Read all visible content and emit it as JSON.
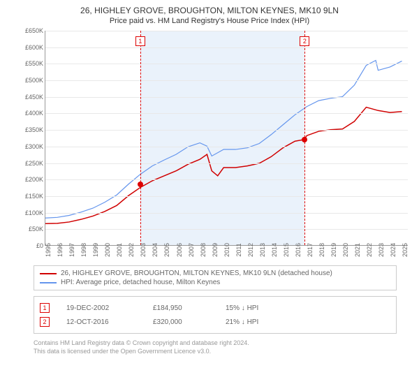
{
  "title": {
    "line1": "26, HIGHLEY GROVE, BROUGHTON, MILTON KEYNES, MK10 9LN",
    "line2": "Price paid vs. HM Land Registry's House Price Index (HPI)"
  },
  "chart": {
    "type": "line",
    "ylim": [
      0,
      650000
    ],
    "ytick_step": 50000,
    "yticks": [
      "£0",
      "£50K",
      "£100K",
      "£150K",
      "£200K",
      "£250K",
      "£300K",
      "£350K",
      "£400K",
      "£450K",
      "£500K",
      "£550K",
      "£600K",
      "£650K"
    ],
    "xlim": [
      1995,
      2025.5
    ],
    "xticks": [
      1995,
      1996,
      1997,
      1998,
      1999,
      2000,
      2001,
      2002,
      2003,
      2004,
      2005,
      2006,
      2007,
      2008,
      2009,
      2010,
      2011,
      2012,
      2013,
      2014,
      2015,
      2016,
      2017,
      2018,
      2019,
      2020,
      2021,
      2022,
      2023,
      2024,
      2025
    ],
    "background_color": "#ffffff",
    "grid_color": "#e8e8e8",
    "shade_color": "#eaf2fb",
    "shade_range": [
      2002.97,
      2016.78
    ],
    "series": [
      {
        "name": "26, HIGHLEY GROVE, BROUGHTON, MILTON KEYNES, MK10 9LN (detached house)",
        "color": "#d00000",
        "width": 1.5,
        "data": [
          [
            1995,
            65000
          ],
          [
            1996,
            66000
          ],
          [
            1997,
            70000
          ],
          [
            1998,
            78000
          ],
          [
            1999,
            88000
          ],
          [
            2000,
            102000
          ],
          [
            2001,
            120000
          ],
          [
            2002,
            150000
          ],
          [
            2003,
            175000
          ],
          [
            2004,
            195000
          ],
          [
            2005,
            210000
          ],
          [
            2006,
            225000
          ],
          [
            2007,
            245000
          ],
          [
            2008,
            260000
          ],
          [
            2008.6,
            275000
          ],
          [
            2009,
            225000
          ],
          [
            2009.5,
            210000
          ],
          [
            2010,
            235000
          ],
          [
            2011,
            235000
          ],
          [
            2012,
            240000
          ],
          [
            2013,
            248000
          ],
          [
            2014,
            268000
          ],
          [
            2015,
            295000
          ],
          [
            2016,
            315000
          ],
          [
            2016.78,
            320000
          ],
          [
            2017,
            332000
          ],
          [
            2018,
            345000
          ],
          [
            2019,
            350000
          ],
          [
            2020,
            352000
          ],
          [
            2021,
            375000
          ],
          [
            2022,
            418000
          ],
          [
            2023,
            408000
          ],
          [
            2024,
            402000
          ],
          [
            2025,
            405000
          ]
        ]
      },
      {
        "name": "HPI: Average price, detached house, Milton Keynes",
        "color": "#6495ed",
        "width": 1.2,
        "data": [
          [
            1995,
            82000
          ],
          [
            1996,
            84000
          ],
          [
            1997,
            90000
          ],
          [
            1998,
            100000
          ],
          [
            1999,
            112000
          ],
          [
            2000,
            130000
          ],
          [
            2001,
            152000
          ],
          [
            2002,
            185000
          ],
          [
            2003,
            215000
          ],
          [
            2004,
            240000
          ],
          [
            2005,
            258000
          ],
          [
            2006,
            275000
          ],
          [
            2007,
            298000
          ],
          [
            2008,
            310000
          ],
          [
            2008.6,
            300000
          ],
          [
            2009,
            270000
          ],
          [
            2010,
            290000
          ],
          [
            2011,
            290000
          ],
          [
            2012,
            295000
          ],
          [
            2013,
            308000
          ],
          [
            2014,
            335000
          ],
          [
            2015,
            365000
          ],
          [
            2016,
            395000
          ],
          [
            2017,
            420000
          ],
          [
            2018,
            438000
          ],
          [
            2019,
            445000
          ],
          [
            2020,
            450000
          ],
          [
            2021,
            485000
          ],
          [
            2022,
            545000
          ],
          [
            2022.8,
            560000
          ],
          [
            2023,
            530000
          ],
          [
            2024,
            540000
          ],
          [
            2025,
            558000
          ]
        ]
      }
    ],
    "markers": [
      {
        "num": "1",
        "x": 2002.97,
        "price_y": 184950
      },
      {
        "num": "2",
        "x": 2016.78,
        "price_y": 320000
      }
    ]
  },
  "legend": {
    "items": [
      {
        "color": "#d00000",
        "label": "26, HIGHLEY GROVE, BROUGHTON, MILTON KEYNES, MK10 9LN (detached house)"
      },
      {
        "color": "#6495ed",
        "label": "HPI: Average price, detached house, Milton Keynes"
      }
    ]
  },
  "transactions": [
    {
      "num": "1",
      "date": "19-DEC-2002",
      "price": "£184,950",
      "delta": "15% ↓ HPI"
    },
    {
      "num": "2",
      "date": "12-OCT-2016",
      "price": "£320,000",
      "delta": "21% ↓ HPI"
    }
  ],
  "footer": {
    "line1": "Contains HM Land Registry data © Crown copyright and database right 2024.",
    "line2": "This data is licensed under the Open Government Licence v3.0."
  }
}
